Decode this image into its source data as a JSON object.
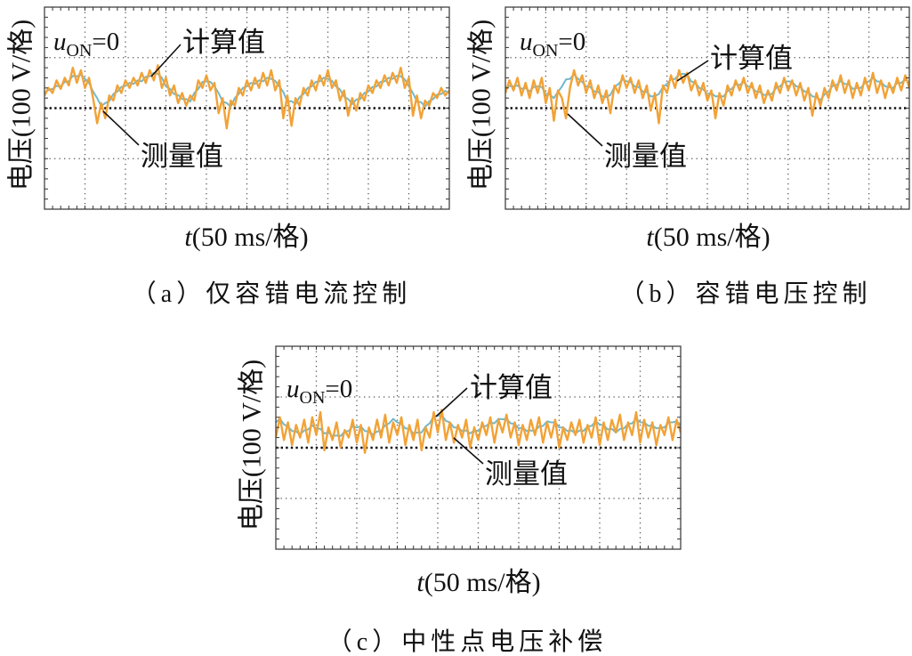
{
  "chart_data": [
    {
      "type": "line",
      "caption": "（a）仅容错电流控制",
      "ylabel": "电压(100 V/格)",
      "xlabel": {
        "symbol": "t",
        "text": "(50 ms/格)"
      },
      "annotation": {
        "symbol": "u",
        "subscript": "ON",
        "text": "=0"
      },
      "x_division": 50,
      "y_division": 100,
      "xlim": [
        0,
        500
      ],
      "ylim": [
        -200,
        200
      ],
      "grid": true,
      "x": [
        0,
        5,
        10,
        15,
        20,
        25,
        30,
        35,
        40,
        45,
        50,
        55,
        60,
        65,
        70,
        75,
        80,
        85,
        90,
        95,
        100,
        105,
        110,
        115,
        120,
        125,
        130,
        135,
        140,
        145,
        150,
        155,
        160,
        165,
        170,
        175,
        180,
        185,
        190,
        195,
        200,
        205,
        210,
        215,
        220,
        225,
        230,
        235,
        240,
        245,
        250,
        255,
        260,
        265,
        270,
        275,
        280,
        285,
        290,
        295,
        300,
        305,
        310,
        315,
        320,
        325,
        330,
        335,
        340,
        345,
        350,
        355,
        360,
        365,
        370,
        375,
        380,
        385,
        390,
        395,
        400,
        405,
        410,
        415,
        420,
        425,
        430,
        435,
        440,
        445,
        450,
        455,
        460,
        465,
        470,
        475,
        480,
        485,
        490,
        495,
        500
      ],
      "series": [
        {
          "name": "计算值",
          "color": "#72b8cc",
          "values": [
            30,
            36,
            38,
            44,
            43,
            52,
            53,
            64,
            63,
            66,
            58,
            50,
            33,
            20,
            4,
            10,
            14,
            28,
            33,
            42,
            44,
            50,
            48,
            55,
            53,
            62,
            63,
            70,
            68,
            60,
            43,
            38,
            28,
            26,
            18,
            18,
            13,
            30,
            38,
            52,
            53,
            52,
            43,
            30,
            13,
            10,
            3,
            20,
            28,
            40,
            43,
            50,
            48,
            55,
            53,
            60,
            58,
            54,
            43,
            32,
            13,
            14,
            8,
            22,
            28,
            40,
            43,
            52,
            53,
            60,
            58,
            54,
            43,
            37,
            23,
            18,
            8,
            17,
            18,
            30,
            33,
            42,
            43,
            52,
            53,
            60,
            58,
            64,
            63,
            57,
            43,
            30,
            13,
            12,
            3,
            14,
            18,
            27,
            28,
            34,
            30
          ]
        },
        {
          "name": "测量值",
          "color": "#f2a236",
          "values": [
            25,
            40,
            30,
            55,
            38,
            60,
            45,
            80,
            50,
            75,
            40,
            60,
            20,
            -30,
            10,
            -20,
            25,
            15,
            45,
            30,
            55,
            40,
            60,
            45,
            70,
            50,
            75,
            55,
            85,
            40,
            60,
            25,
            45,
            10,
            30,
            5,
            25,
            15,
            55,
            40,
            65,
            35,
            50,
            -10,
            20,
            -40,
            15,
            5,
            40,
            25,
            55,
            35,
            60,
            40,
            70,
            45,
            75,
            35,
            55,
            -20,
            25,
            -35,
            20,
            5,
            40,
            25,
            55,
            35,
            65,
            45,
            75,
            40,
            55,
            15,
            35,
            -15,
            20,
            -5,
            30,
            15,
            45,
            30,
            55,
            40,
            65,
            45,
            70,
            50,
            80,
            40,
            60,
            -15,
            25,
            -20,
            15,
            5,
            30,
            20,
            40,
            25,
            35
          ]
        }
      ]
    },
    {
      "type": "line",
      "caption": "（b）容错电压控制",
      "ylabel": "电压(100 V/格)",
      "xlabel": {
        "symbol": "t",
        "text": "(50 ms/格)"
      },
      "annotation": {
        "symbol": "u",
        "subscript": "ON",
        "text": "=0"
      },
      "x_division": 50,
      "y_division": 100,
      "xlim": [
        0,
        500
      ],
      "ylim": [
        -200,
        200
      ],
      "grid": true,
      "x": [
        0,
        5,
        10,
        15,
        20,
        25,
        30,
        35,
        40,
        45,
        50,
        55,
        60,
        65,
        70,
        75,
        80,
        85,
        90,
        95,
        100,
        105,
        110,
        115,
        120,
        125,
        130,
        135,
        140,
        145,
        150,
        155,
        160,
        165,
        170,
        175,
        180,
        185,
        190,
        195,
        200,
        205,
        210,
        215,
        220,
        225,
        230,
        235,
        240,
        245,
        250,
        255,
        260,
        265,
        270,
        275,
        280,
        285,
        290,
        295,
        300,
        305,
        310,
        315,
        320,
        325,
        330,
        335,
        340,
        345,
        350,
        355,
        360,
        365,
        370,
        375,
        380,
        385,
        390,
        395,
        400,
        405,
        410,
        415,
        420,
        425,
        430,
        435,
        440,
        445,
        450,
        455,
        460,
        465,
        470,
        475,
        480,
        485,
        490,
        495,
        500
      ],
      "series": [
        {
          "name": "计算值",
          "color": "#72b8cc",
          "values": [
            40,
            44,
            43,
            45,
            38,
            40,
            33,
            42,
            43,
            42,
            28,
            27,
            20,
            32,
            43,
            57,
            58,
            67,
            58,
            52,
            43,
            42,
            33,
            32,
            23,
            22,
            26,
            42,
            48,
            57,
            53,
            52,
            43,
            42,
            33,
            32,
            23,
            24,
            28,
            42,
            48,
            57,
            58,
            67,
            68,
            67,
            53,
            50,
            40,
            37,
            28,
            30,
            23,
            24,
            23,
            34,
            38,
            47,
            46,
            52,
            43,
            42,
            33,
            32,
            26,
            27,
            28,
            40,
            43,
            52,
            53,
            52,
            43,
            42,
            33,
            32,
            23,
            22,
            16,
            27,
            33,
            44,
            46,
            54,
            48,
            47,
            38,
            40,
            40,
            50,
            53,
            60,
            53,
            52,
            43,
            42,
            40,
            50,
            50,
            57,
            50
          ]
        },
        {
          "name": "测量值",
          "color": "#f2a236",
          "values": [
            30,
            55,
            35,
            60,
            25,
            50,
            20,
            55,
            30,
            60,
            10,
            40,
            -25,
            35,
            20,
            -20,
            40,
            75,
            45,
            65,
            30,
            55,
            20,
            45,
            10,
            35,
            -10,
            45,
            30,
            65,
            40,
            60,
            30,
            55,
            20,
            45,
            -5,
            30,
            -30,
            45,
            30,
            65,
            40,
            75,
            50,
            70,
            35,
            55,
            25,
            50,
            15,
            35,
            -20,
            30,
            5,
            45,
            25,
            55,
            35,
            60,
            30,
            50,
            20,
            45,
            10,
            35,
            15,
            50,
            30,
            60,
            35,
            55,
            25,
            50,
            15,
            40,
            -15,
            30,
            5,
            40,
            20,
            55,
            35,
            65,
            30,
            55,
            20,
            50,
            25,
            60,
            35,
            70,
            30,
            55,
            20,
            50,
            30,
            60,
            35,
            65,
            40
          ]
        }
      ]
    },
    {
      "type": "line",
      "caption": "（c）中性点电压补偿",
      "ylabel": "电压(100 V/格)",
      "xlabel": {
        "symbol": "t",
        "text": "(50 ms/格)"
      },
      "annotation": {
        "symbol": "u",
        "subscript": "ON",
        "text": "=0"
      },
      "x_division": 50,
      "y_division": 100,
      "xlim": [
        0,
        500
      ],
      "ylim": [
        -200,
        200
      ],
      "grid": true,
      "x": [
        0,
        5,
        10,
        15,
        20,
        25,
        30,
        35,
        40,
        45,
        50,
        55,
        60,
        65,
        70,
        75,
        80,
        85,
        90,
        95,
        100,
        105,
        110,
        115,
        120,
        125,
        130,
        135,
        140,
        145,
        150,
        155,
        160,
        165,
        170,
        175,
        180,
        185,
        190,
        195,
        200,
        205,
        210,
        215,
        220,
        225,
        230,
        235,
        240,
        245,
        250,
        255,
        260,
        265,
        270,
        275,
        280,
        285,
        290,
        295,
        300,
        305,
        310,
        315,
        320,
        325,
        330,
        335,
        340,
        345,
        350,
        355,
        360,
        365,
        370,
        375,
        380,
        385,
        390,
        395,
        400,
        405,
        410,
        415,
        420,
        425,
        430,
        435,
        440,
        445,
        450,
        455,
        460,
        465,
        470,
        475,
        480,
        485,
        490,
        495,
        500
      ],
      "series": [
        {
          "name": "计算值",
          "color": "#72b8cc",
          "values": [
            50,
            57,
            46,
            42,
            33,
            32,
            26,
            34,
            36,
            44,
            38,
            37,
            28,
            30,
            23,
            24,
            23,
            32,
            33,
            42,
            40,
            42,
            33,
            32,
            26,
            32,
            33,
            44,
            48,
            57,
            50,
            47,
            38,
            37,
            28,
            30,
            30,
            42,
            48,
            62,
            63,
            64,
            53,
            50,
            40,
            40,
            33,
            34,
            28,
            34,
            33,
            42,
            43,
            50,
            48,
            57,
            56,
            57,
            48,
            47,
            38,
            40,
            33,
            34,
            33,
            42,
            43,
            52,
            50,
            50,
            40,
            40,
            33,
            34,
            28,
            34,
            33,
            42,
            43,
            52,
            46,
            44,
            36,
            37,
            30,
            37,
            38,
            47,
            48,
            57,
            50,
            50,
            43,
            44,
            38,
            40,
            40,
            50,
            50,
            52,
            45
          ]
        },
        {
          "name": "测量值",
          "color": "#f2a236",
          "values": [
            20,
            60,
            15,
            50,
            5,
            45,
            20,
            55,
            10,
            60,
            25,
            70,
            -5,
            40,
            15,
            50,
            0,
            35,
            20,
            55,
            10,
            45,
            -10,
            40,
            15,
            55,
            20,
            65,
            10,
            50,
            25,
            60,
            5,
            45,
            15,
            55,
            -5,
            40,
            20,
            70,
            30,
            75,
            15,
            50,
            10,
            45,
            20,
            55,
            0,
            40,
            15,
            50,
            25,
            60,
            10,
            55,
            30,
            65,
            20,
            50,
            5,
            45,
            15,
            55,
            25,
            60,
            10,
            50,
            20,
            55,
            0,
            40,
            15,
            50,
            25,
            55,
            10,
            45,
            20,
            60,
            5,
            50,
            15,
            55,
            30,
            65,
            15,
            50,
            25,
            70,
            10,
            55,
            20,
            50,
            5,
            45,
            25,
            60,
            15,
            55,
            30
          ]
        }
      ]
    }
  ]
}
